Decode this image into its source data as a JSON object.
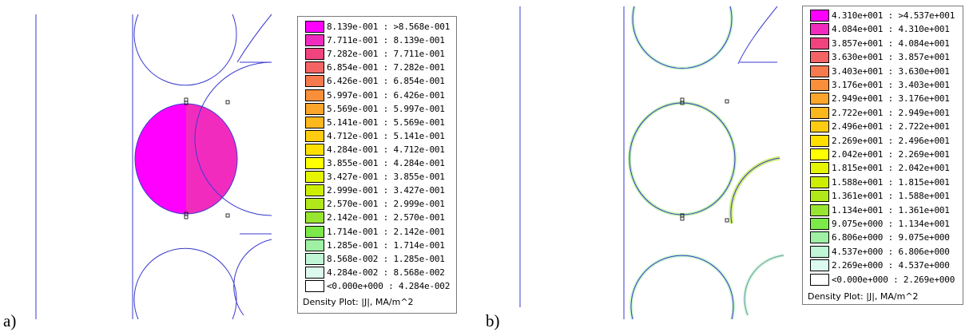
{
  "panels": [
    {
      "label": "a)",
      "legend": {
        "title": "Density Plot: |J|, MA/m^2",
        "entries": [
          {
            "range": "8.139e-001 : >8.568e-001",
            "color": "#ff00ff"
          },
          {
            "range": "7.711e-001 : 8.139e-001",
            "color": "#f22bbf"
          },
          {
            "range": "7.282e-001 : 7.711e-001",
            "color": "#f1447f"
          },
          {
            "range": "6.854e-001 : 7.282e-001",
            "color": "#f56464"
          },
          {
            "range": "6.426e-001 : 6.854e-001",
            "color": "#f77a4f"
          },
          {
            "range": "5.997e-001 : 6.426e-001",
            "color": "#f98f3a"
          },
          {
            "range": "5.569e-001 : 5.997e-001",
            "color": "#fba52b"
          },
          {
            "range": "5.141e-001 : 5.569e-001",
            "color": "#fdb81e"
          },
          {
            "range": "4.712e-001 : 5.141e-001",
            "color": "#ffcc11"
          },
          {
            "range": "4.284e-001 : 4.712e-001",
            "color": "#ffe000"
          },
          {
            "range": "3.855e-001 : 4.284e-001",
            "color": "#ffff00"
          },
          {
            "range": "3.427e-001 : 3.855e-001",
            "color": "#e5f500"
          },
          {
            "range": "2.999e-001 : 3.427e-001",
            "color": "#cdee00"
          },
          {
            "range": "2.570e-001 : 2.999e-001",
            "color": "#b1e81a"
          },
          {
            "range": "2.142e-001 : 2.570e-001",
            "color": "#97e530"
          },
          {
            "range": "1.714e-001 : 2.142e-001",
            "color": "#7de84a"
          },
          {
            "range": "1.285e-001 : 1.714e-001",
            "color": "#9ff0a4"
          },
          {
            "range": "8.568e-002 : 1.285e-001",
            "color": "#c0f5d6"
          },
          {
            "range": "4.284e-002 : 8.568e-002",
            "color": "#dcfaee"
          },
          {
            "range": "<0.000e+000 : 4.284e-002",
            "color": "#ffffff"
          }
        ]
      }
    },
    {
      "label": "b)",
      "legend": {
        "title": "Density Plot: |J|, MA/m^2",
        "entries": [
          {
            "range": "4.310e+001 : >4.537e+001",
            "color": "#ff00ff"
          },
          {
            "range": "4.084e+001 : 4.310e+001",
            "color": "#f22bbf"
          },
          {
            "range": "3.857e+001 : 4.084e+001",
            "color": "#f1447f"
          },
          {
            "range": "3.630e+001 : 3.857e+001",
            "color": "#f56464"
          },
          {
            "range": "3.403e+001 : 3.630e+001",
            "color": "#f77a4f"
          },
          {
            "range": "3.176e+001 : 3.403e+001",
            "color": "#f98f3a"
          },
          {
            "range": "2.949e+001 : 3.176e+001",
            "color": "#fba52b"
          },
          {
            "range": "2.722e+001 : 2.949e+001",
            "color": "#fdb81e"
          },
          {
            "range": "2.496e+001 : 2.722e+001",
            "color": "#ffcc11"
          },
          {
            "range": "2.269e+001 : 2.496e+001",
            "color": "#ffe000"
          },
          {
            "range": "2.042e+001 : 2.269e+001",
            "color": "#ffff00"
          },
          {
            "range": "1.815e+001 : 2.042e+001",
            "color": "#e5f500"
          },
          {
            "range": "1.588e+001 : 1.815e+001",
            "color": "#cdee00"
          },
          {
            "range": "1.361e+001 : 1.588e+001",
            "color": "#b1e81a"
          },
          {
            "range": "1.134e+001 : 1.361e+001",
            "color": "#97e530"
          },
          {
            "range": "9.075e+000 : 1.134e+001",
            "color": "#7de84a"
          },
          {
            "range": "6.806e+000 : 9.075e+000",
            "color": "#9ff0a4"
          },
          {
            "range": "4.537e+000 : 6.806e+000",
            "color": "#c0f5d6"
          },
          {
            "range": "2.269e+000 : 4.537e+000",
            "color": "#dcfaee"
          },
          {
            "range": "<0.000e+000 : 2.269e+000",
            "color": "#ffffff"
          }
        ]
      }
    }
  ],
  "colors": {
    "boundary": "#3a3ad0",
    "conductor_left_half": "#ff00ff",
    "conductor_right_half": "#f22bbf"
  }
}
